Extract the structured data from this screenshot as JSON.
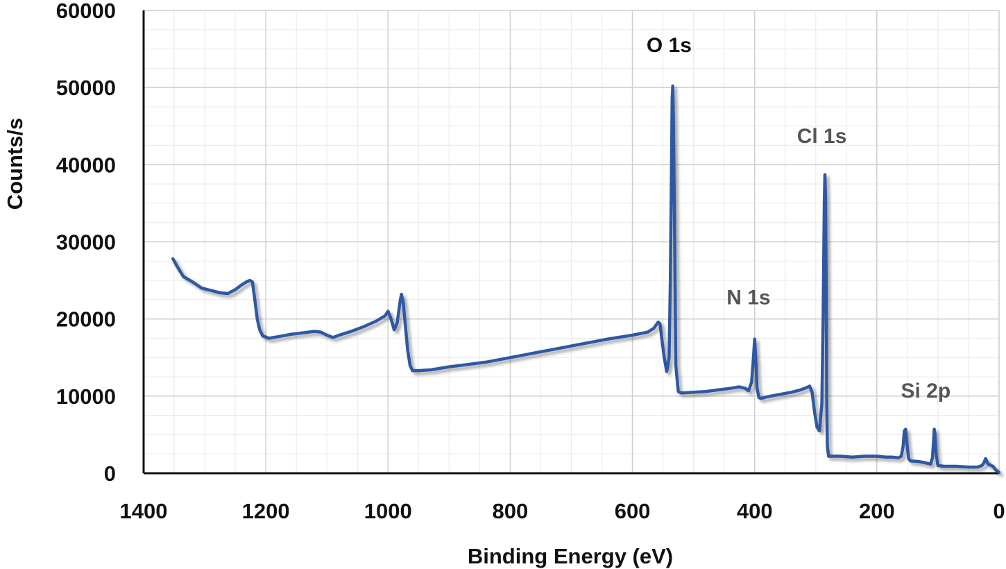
{
  "chart_data": {
    "type": "line",
    "title": "",
    "xlabel": "Binding Energy (eV)",
    "ylabel": "Counts/s",
    "xlim": [
      1400,
      0
    ],
    "ylim": [
      0,
      60000
    ],
    "x_reversed": true,
    "grid": true,
    "minor_grid": true,
    "legend": "none",
    "x_ticks": [
      1400,
      1200,
      1000,
      800,
      600,
      400,
      200,
      0
    ],
    "x_tick_labels": [
      "1400",
      "1200",
      "1000",
      "800",
      "600",
      "400",
      "200",
      "0"
    ],
    "y_ticks": [
      0,
      10000,
      20000,
      30000,
      40000,
      50000,
      60000
    ],
    "y_tick_labels": [
      "0",
      "10000",
      "20000",
      "30000",
      "40000",
      "50000",
      "60000"
    ],
    "colors": {
      "series": "#2F59A3",
      "grid_major": "#d0d0d0",
      "grid_minor": "#ececec",
      "axis": "#111111",
      "label_dark": "#111111",
      "label_gray": "#555555"
    },
    "series": [
      {
        "x": [
          1352,
          1345,
          1335,
          1320,
          1305,
          1290,
          1275,
          1262,
          1250,
          1240,
          1232,
          1226,
          1222,
          1218,
          1214,
          1210,
          1205,
          1195,
          1180,
          1160,
          1140,
          1120,
          1110,
          1100,
          1090,
          1080,
          1060,
          1040,
          1020,
          1005,
          1000,
          995,
          990,
          985,
          980,
          978,
          975,
          972,
          968,
          964,
          960,
          950,
          930,
          900,
          870,
          840,
          800,
          760,
          720,
          680,
          640,
          600,
          575,
          565,
          558,
          555,
          552,
          548,
          544,
          540,
          538,
          536,
          535,
          534,
          533,
          531,
          529,
          525,
          520,
          500,
          480,
          460,
          440,
          425,
          415,
          410,
          405,
          402,
          400,
          398,
          396,
          393,
          390,
          380,
          360,
          340,
          325,
          315,
          310,
          306,
          302,
          298,
          294,
          290,
          288,
          286,
          285,
          284,
          283,
          282,
          281,
          279,
          275,
          260,
          240,
          220,
          200,
          185,
          175,
          165,
          160,
          157,
          155,
          153,
          151,
          148,
          145,
          130,
          118,
          112,
          109,
          107,
          106,
          105,
          103,
          100,
          90,
          70,
          50,
          35,
          28,
          25,
          22,
          18,
          10,
          5,
          0
        ],
        "y": [
          27800,
          26800,
          25500,
          24800,
          24000,
          23700,
          23400,
          23300,
          23800,
          24400,
          24800,
          25000,
          24800,
          22500,
          20000,
          18600,
          17800,
          17500,
          17700,
          18000,
          18200,
          18400,
          18300,
          17900,
          17600,
          17900,
          18400,
          19000,
          19700,
          20400,
          21000,
          20000,
          18600,
          19500,
          22400,
          23200,
          22000,
          19500,
          16000,
          14000,
          13300,
          13300,
          13400,
          13800,
          14100,
          14400,
          15000,
          15600,
          16200,
          16800,
          17400,
          17900,
          18300,
          18800,
          19600,
          19400,
          17500,
          15000,
          13200,
          15000,
          25000,
          40000,
          48500,
          50200,
          46000,
          32000,
          14000,
          10600,
          10400,
          10500,
          10600,
          10800,
          11000,
          11200,
          11000,
          10700,
          11800,
          15000,
          17400,
          14500,
          11000,
          9800,
          9700,
          9900,
          10200,
          10500,
          10800,
          11100,
          11300,
          10500,
          8000,
          6000,
          5500,
          9000,
          20000,
          35000,
          38700,
          36000,
          25000,
          10000,
          3500,
          2200,
          2200,
          2200,
          2100,
          2200,
          2200,
          2100,
          2100,
          2000,
          2200,
          3500,
          5500,
          5700,
          4000,
          1900,
          1600,
          1500,
          1300,
          1200,
          2000,
          4500,
          5700,
          5200,
          2500,
          1000,
          900,
          900,
          800,
          800,
          1000,
          1300,
          1900,
          1200,
          900,
          400,
          100
        ]
      }
    ],
    "annotations": [
      {
        "text": "O 1s",
        "x": 540,
        "y": 54600,
        "tone": "dark"
      },
      {
        "text": "Cl 1s",
        "x": 290,
        "y": 42800,
        "tone": "gray"
      },
      {
        "text": "N 1s",
        "x": 410,
        "y": 21900,
        "tone": "gray"
      },
      {
        "text": "Si 2p",
        "x": 120,
        "y": 9800,
        "tone": "gray"
      }
    ]
  }
}
